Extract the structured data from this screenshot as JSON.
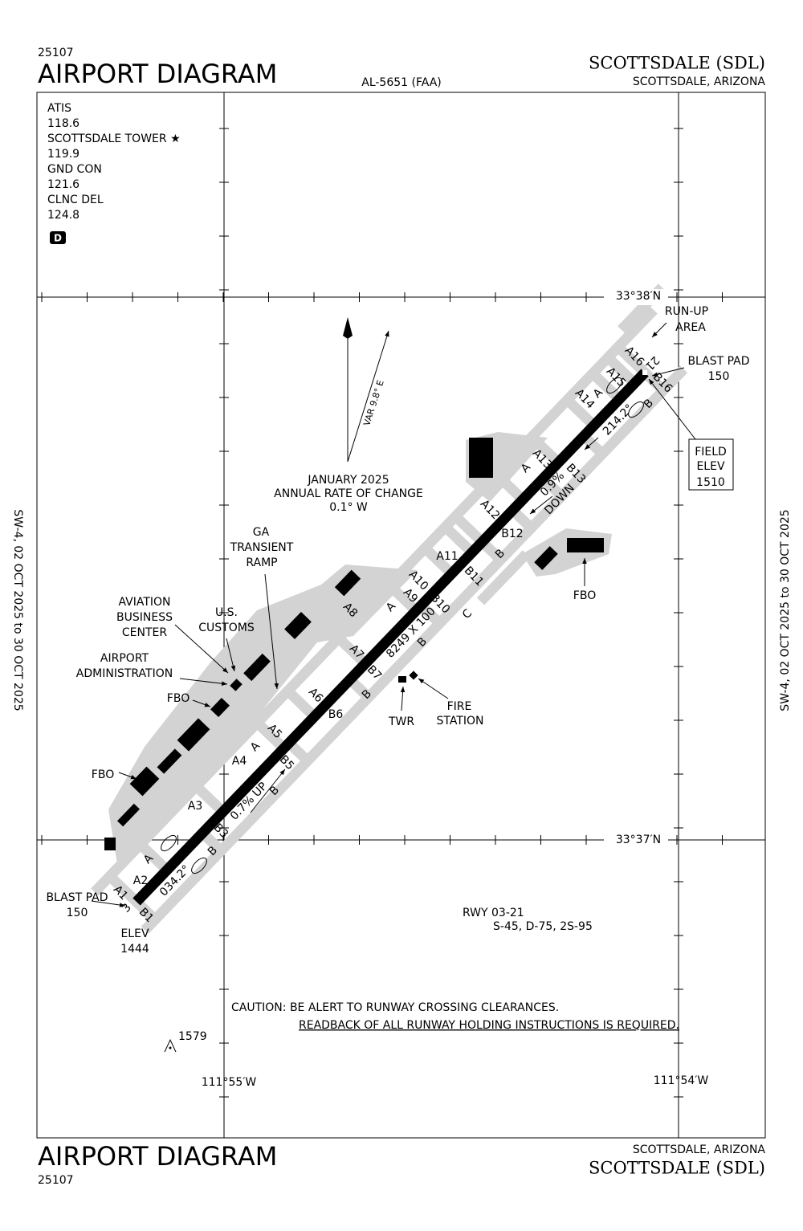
{
  "header": {
    "number": "25107",
    "title": "AIRPORT DIAGRAM",
    "document": "AL-5651 (FAA)",
    "airport": "SCOTTSDALE (SDL)",
    "location": "SCOTTSDALE, ARIZONA"
  },
  "effective": "SW-4, 02 OCT 2025 to 30 OCT 2025",
  "frequencies": [
    {
      "name": "ATIS",
      "freq": "118.6"
    },
    {
      "name": "SCOTTSDALE TOWER ★",
      "freq": "119.9"
    },
    {
      "name": "GND CON",
      "freq": "121.6"
    },
    {
      "name": "CLNC DEL",
      "freq": "124.8"
    }
  ],
  "badge": "D",
  "coordinates": {
    "lat_north": "33°38′N",
    "lat_south": "33°37′N",
    "lon_west": "111°55′W",
    "lon_east": "111°54′W"
  },
  "magnetic": {
    "variation": "VAR 9.8° E",
    "lines": [
      "JANUARY 2025",
      "ANNUAL RATE OF CHANGE",
      "0.1° W"
    ]
  },
  "labels": [
    "RUN-UP",
    "AREA",
    "BLAST PAD",
    "150",
    "A16",
    "21",
    "B16",
    "A15",
    "A",
    "A14",
    "B",
    "214.2°",
    "A13",
    "A",
    "B13",
    "0.9%",
    "DOWN",
    "A12",
    "B12",
    "B",
    "A11",
    "B11",
    "A10",
    "A9",
    "B10",
    "A",
    "C",
    "8249 X 100",
    "B",
    "A8",
    "A7",
    "B7",
    "B",
    "A6",
    "B6",
    "A5",
    "A",
    "A4",
    "B5",
    "0.7% UP",
    "B",
    "A3",
    "B3",
    "A",
    "A2",
    "034.2°",
    "B",
    "A1",
    "3",
    "B1",
    "ELEV",
    "1444",
    "BLAST PAD",
    "150",
    "FBO",
    "FIRE",
    "STATION",
    "TWR",
    "GA",
    "TRANSIENT",
    "RAMP",
    "U.S.",
    "CUSTOMS",
    "AVIATION",
    "BUSINESS",
    "CENTER",
    "AIRPORT",
    "ADMINISTRATION",
    "FBO",
    "FBO"
  ],
  "field_elevation": [
    "FIELD",
    "ELEV",
    "1510"
  ],
  "runway_info": [
    "RWY 03-21",
    "S-45, D-75, 2S-95"
  ],
  "caution": [
    "CAUTION: BE ALERT TO RUNWAY CROSSING CLEARANCES.",
    "READBACK OF ALL RUNWAY HOLDING INSTRUCTIONS IS REQUIRED."
  ],
  "obstacle": "1579"
}
